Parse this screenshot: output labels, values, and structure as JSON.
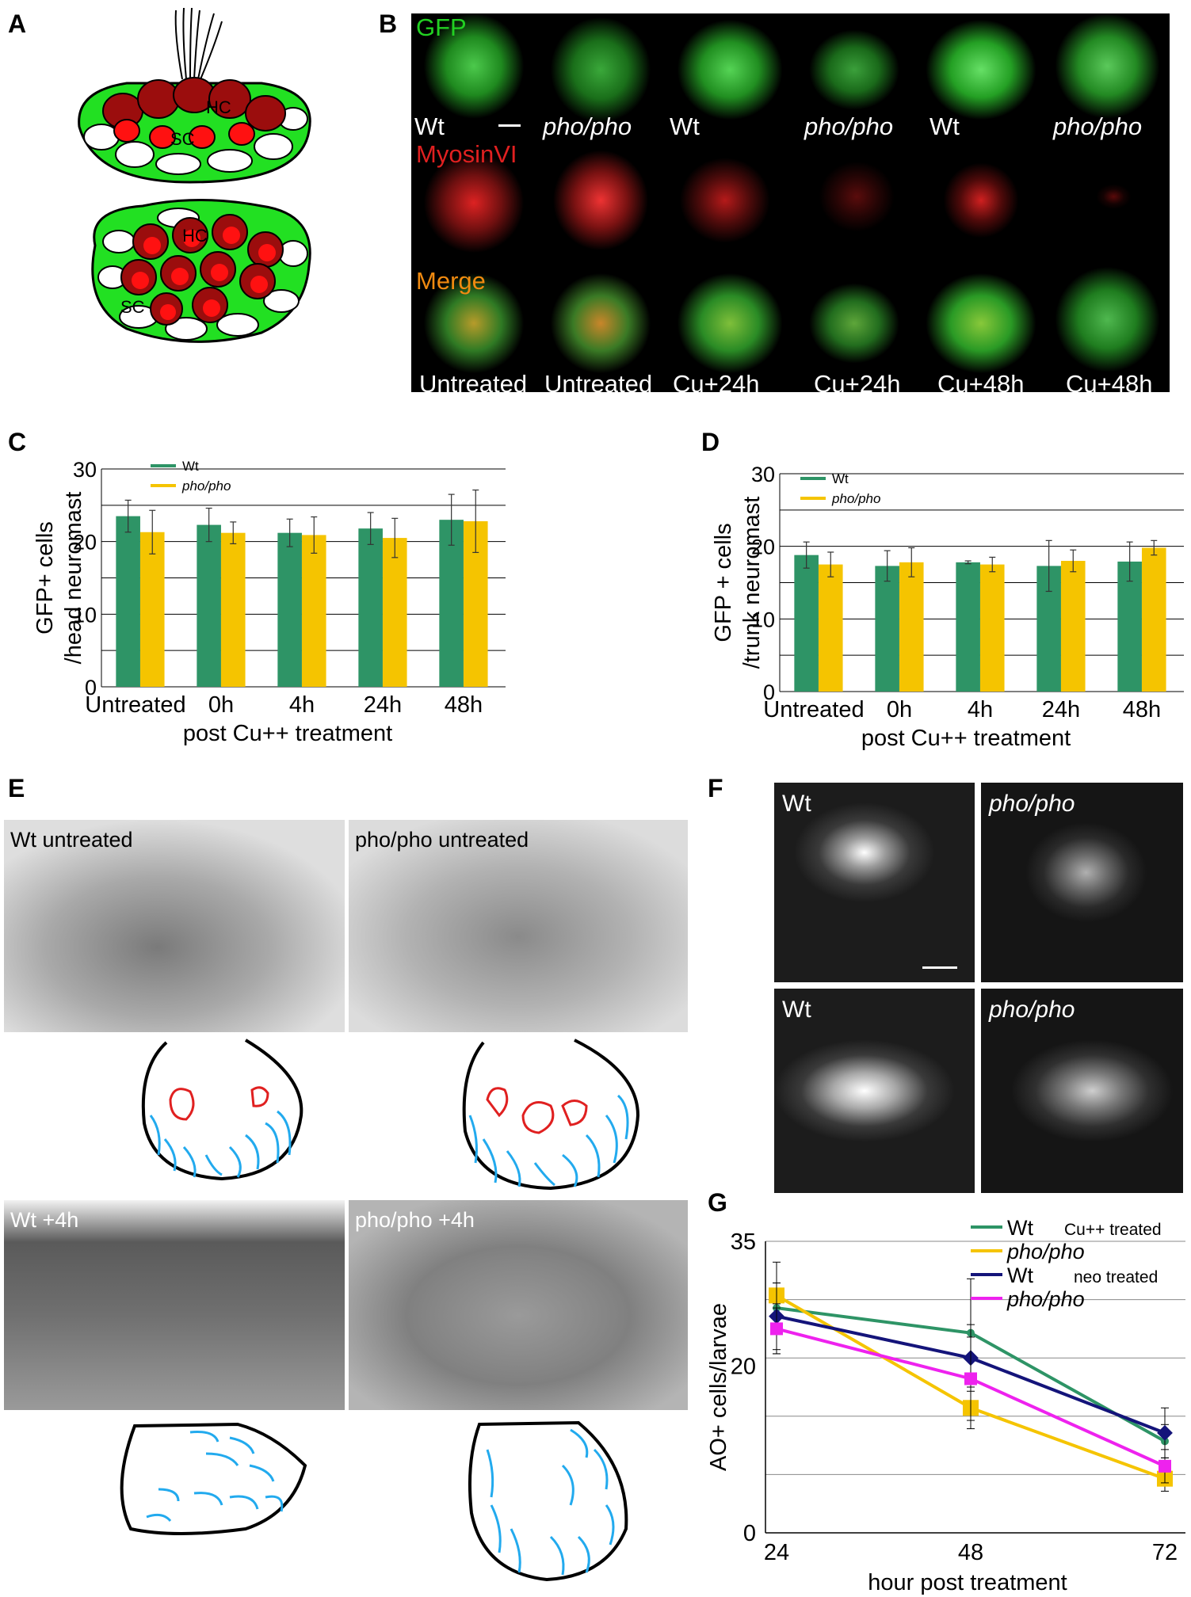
{
  "panels": {
    "A": "A",
    "B": "B",
    "C": "C",
    "D": "D",
    "E": "E",
    "F": "F",
    "G": "G"
  },
  "panelA": {
    "hc": "HC",
    "sc": "SC"
  },
  "panelB": {
    "rows": [
      "GFP",
      "MyosinVI",
      "Merge"
    ],
    "genotypes": [
      "Wt",
      "pho/pho",
      "Wt",
      "pho/pho",
      "Wt",
      "pho/pho"
    ],
    "conditions": [
      "Untreated",
      "Untreated",
      "Cu+24h",
      "Cu+24h",
      "Cu+48h",
      "Cu+48h"
    ]
  },
  "panelE": {
    "captions": [
      "Wt untreated",
      "pho/pho untreated",
      "Wt +4h",
      "pho/pho +4h"
    ]
  },
  "panelF": {
    "captions": [
      "Wt",
      "pho/pho",
      "Wt",
      "pho/pho"
    ]
  },
  "colors": {
    "wt": "#2e9466",
    "pho": "#f5c400",
    "neo_wt": "#14147a",
    "neo_pho": "#ee22ee"
  },
  "chart_data": [
    {
      "type": "bar",
      "id": "C",
      "categories": [
        "Untreated",
        "0h",
        "4h",
        "24h",
        "48h"
      ],
      "series": [
        {
          "name": "Wt",
          "values": [
            23.5,
            22.3,
            21.2,
            21.8,
            23.0
          ],
          "errors": [
            2.2,
            2.3,
            1.9,
            2.2,
            3.5
          ]
        },
        {
          "name": "pho/pho",
          "values": [
            21.3,
            21.2,
            20.9,
            20.5,
            22.8
          ],
          "errors": [
            3.0,
            1.5,
            2.5,
            2.7,
            4.3
          ]
        }
      ],
      "xlabel": "post Cu++ treatment",
      "ylabel": "GFP+ cells\n/head neuromast",
      "ylim": [
        0,
        30
      ],
      "yticks": [
        0,
        10,
        20,
        30
      ],
      "legend": "top-left"
    },
    {
      "type": "bar",
      "id": "D",
      "categories": [
        "Untreated",
        "0h",
        "4h",
        "24h",
        "48h"
      ],
      "series": [
        {
          "name": "Wt",
          "values": [
            18.8,
            17.3,
            17.8,
            17.3,
            17.9
          ],
          "errors": [
            1.8,
            2.1,
            0.2,
            3.5,
            2.7
          ]
        },
        {
          "name": "pho/pho",
          "values": [
            17.5,
            17.8,
            17.5,
            18.0,
            19.8
          ],
          "errors": [
            1.7,
            2.0,
            1.0,
            1.5,
            1.0
          ]
        }
      ],
      "xlabel": "post Cu++ treatment",
      "ylabel": "GFP + cells\n/trunk neuromast",
      "ylim": [
        0,
        30
      ],
      "yticks": [
        0,
        10,
        20,
        30
      ],
      "legend": "top-left"
    },
    {
      "type": "line",
      "id": "G",
      "x": [
        24,
        48,
        72
      ],
      "series": [
        {
          "name": "Wt",
          "group": "Cu++ treated",
          "values": [
            27,
            24,
            11
          ],
          "errors": [
            5.5,
            6.5,
            2.0
          ]
        },
        {
          "name": "pho/pho",
          "group": "Cu++ treated",
          "values": [
            28.5,
            15,
            6.5
          ],
          "errors": [
            1.5,
            2.5,
            1.5
          ]
        },
        {
          "name": "Wt",
          "group": "neo treated",
          "values": [
            26,
            21,
            12
          ],
          "errors": [
            4,
            4,
            3
          ]
        },
        {
          "name": "pho/pho",
          "group": "neo treated",
          "values": [
            24.5,
            18.5,
            8
          ],
          "errors": [
            3,
            5,
            2
          ]
        }
      ],
      "legend_groups": [
        "Cu++ treated",
        "neo treated"
      ],
      "xlabel": "hour post treatment",
      "ylabel": "AO+ cells/larvae",
      "ylim": [
        0,
        35
      ],
      "yticks": [
        0,
        20,
        35
      ],
      "xticks": [
        24,
        48,
        72
      ]
    }
  ]
}
